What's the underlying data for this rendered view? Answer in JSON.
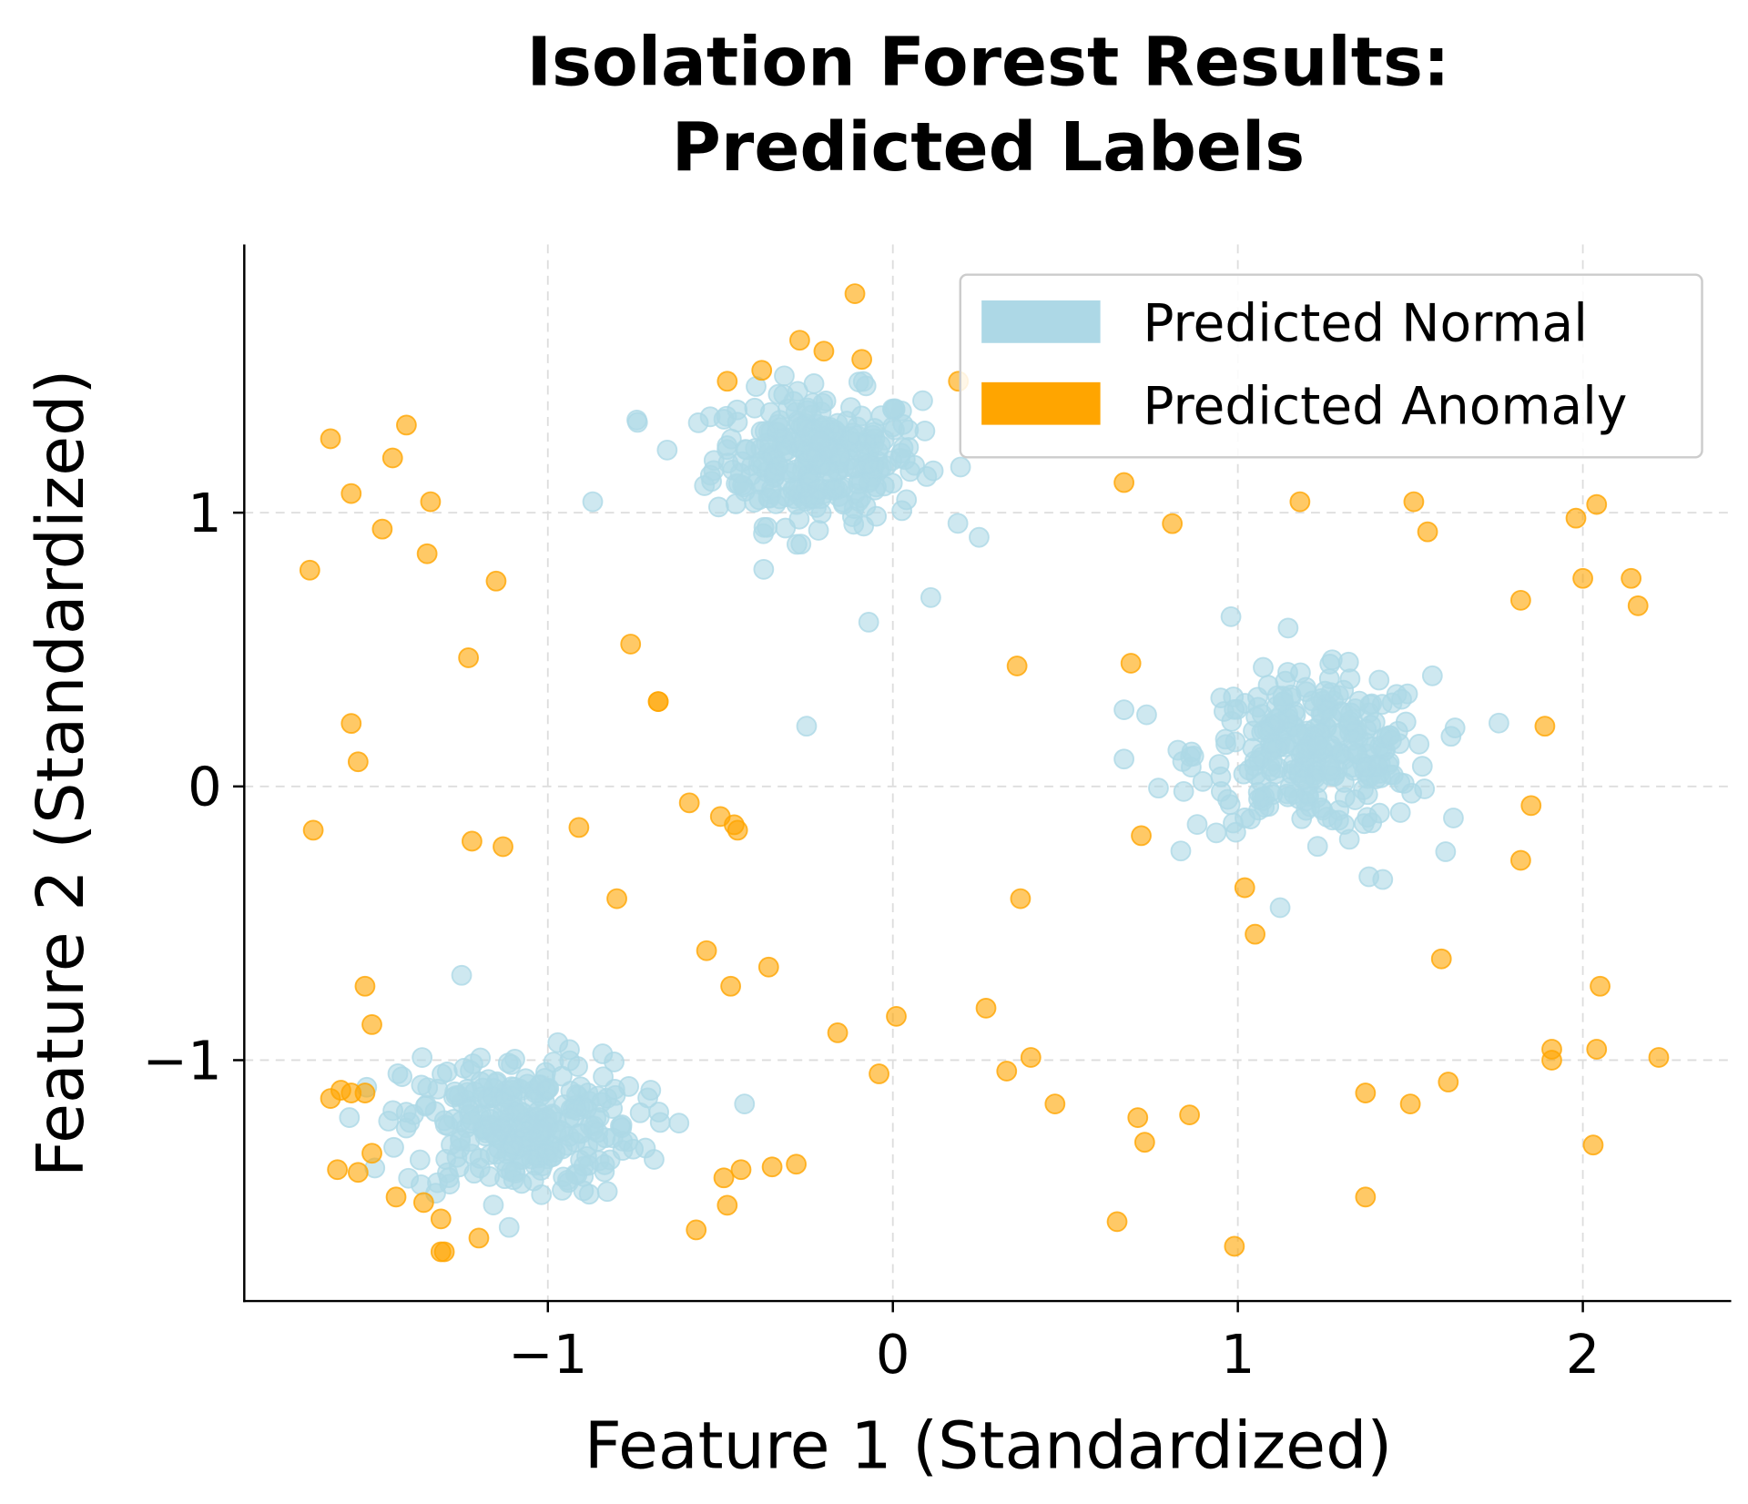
{
  "chart_data": {
    "type": "scatter",
    "title": "Isolation Forest Results:\nPredicted Labels",
    "title_lines": [
      "Isolation Forest Results:",
      "Predicted Labels"
    ],
    "xlabel": "Feature 1 (Standardized)",
    "ylabel": "Feature 2 (Standardized)",
    "xlim": [
      -1.88,
      2.43
    ],
    "ylim": [
      -1.88,
      1.98
    ],
    "xticks": [
      -1,
      0,
      1,
      2
    ],
    "yticks": [
      -1,
      0,
      1
    ],
    "xtick_labels": [
      "−1",
      "0",
      "1",
      "2"
    ],
    "ytick_labels": [
      "−1",
      "0",
      "1"
    ],
    "grid": true,
    "legend_position": "top-right",
    "series": [
      {
        "name": "Predicted Normal",
        "color": "#add8e6",
        "clusters": [
          {
            "center": [
              -0.22,
              1.2
            ],
            "std": [
              0.15,
              0.12
            ],
            "count": 300
          },
          {
            "center": [
              1.22,
              0.12
            ],
            "std": [
              0.17,
              0.14
            ],
            "count": 300
          },
          {
            "center": [
              -1.08,
              -1.24
            ],
            "std": [
              0.17,
              0.13
            ],
            "count": 300
          }
        ],
        "points": [
          [
            -0.25,
            0.22
          ],
          [
            -0.07,
            0.6
          ],
          [
            0.11,
            0.69
          ],
          [
            -0.87,
            1.04
          ],
          [
            0.67,
            0.28
          ],
          [
            0.67,
            0.1
          ],
          [
            0.98,
            0.62
          ],
          [
            -0.74,
            1.33
          ],
          [
            0.25,
            0.91
          ],
          [
            1.38,
            -0.33
          ],
          [
            1.42,
            -0.34
          ],
          [
            -1.25,
            -0.69
          ],
          [
            -0.43,
            -1.16
          ],
          [
            -0.62,
            -1.23
          ]
        ]
      },
      {
        "name": "Predicted Anomaly",
        "color": "#ffa500",
        "points": [
          [
            -0.11,
            1.8
          ],
          [
            -0.27,
            1.63
          ],
          [
            -0.2,
            1.59
          ],
          [
            -0.09,
            1.56
          ],
          [
            -0.38,
            1.52
          ],
          [
            -0.48,
            1.48
          ],
          [
            0.19,
            1.48
          ],
          [
            -1.63,
            1.27
          ],
          [
            -1.41,
            1.32
          ],
          [
            -1.45,
            1.2
          ],
          [
            -1.57,
            1.07
          ],
          [
            -1.34,
            1.04
          ],
          [
            -1.48,
            0.94
          ],
          [
            -1.35,
            0.85
          ],
          [
            -1.69,
            0.79
          ],
          [
            -1.15,
            0.75
          ],
          [
            0.67,
            1.11
          ],
          [
            0.81,
            0.96
          ],
          [
            1.18,
            1.04
          ],
          [
            1.51,
            1.04
          ],
          [
            1.55,
            0.93
          ],
          [
            1.98,
            0.98
          ],
          [
            2.04,
            1.03
          ],
          [
            2.0,
            0.76
          ],
          [
            2.14,
            0.76
          ],
          [
            2.16,
            0.66
          ],
          [
            1.82,
            0.68
          ],
          [
            -1.23,
            0.47
          ],
          [
            -0.76,
            0.52
          ],
          [
            -0.68,
            0.31
          ],
          [
            -0.68,
            0.31
          ],
          [
            0.36,
            0.44
          ],
          [
            0.69,
            0.45
          ],
          [
            -1.57,
            0.23
          ],
          [
            -1.55,
            0.09
          ],
          [
            1.89,
            0.22
          ],
          [
            -1.68,
            -0.16
          ],
          [
            -0.59,
            -0.06
          ],
          [
            -0.5,
            -0.11
          ],
          [
            -0.46,
            -0.14
          ],
          [
            -0.45,
            -0.16
          ],
          [
            -1.22,
            -0.2
          ],
          [
            -1.13,
            -0.22
          ],
          [
            -0.91,
            -0.15
          ],
          [
            0.72,
            -0.18
          ],
          [
            1.85,
            -0.07
          ],
          [
            1.82,
            -0.27
          ],
          [
            -0.8,
            -0.41
          ],
          [
            0.37,
            -0.41
          ],
          [
            1.02,
            -0.37
          ],
          [
            1.05,
            -0.54
          ],
          [
            -0.54,
            -0.6
          ],
          [
            -0.36,
            -0.66
          ],
          [
            -0.47,
            -0.73
          ],
          [
            -1.53,
            -0.73
          ],
          [
            -1.51,
            -0.87
          ],
          [
            1.59,
            -0.63
          ],
          [
            2.05,
            -0.73
          ],
          [
            -0.16,
            -0.9
          ],
          [
            0.01,
            -0.84
          ],
          [
            0.27,
            -0.81
          ],
          [
            0.4,
            -0.99
          ],
          [
            0.33,
            -1.04
          ],
          [
            -0.04,
            -1.05
          ],
          [
            0.47,
            -1.16
          ],
          [
            1.91,
            -0.96
          ],
          [
            1.91,
            -1.0
          ],
          [
            2.04,
            -0.96
          ],
          [
            2.22,
            -0.99
          ],
          [
            1.37,
            -1.12
          ],
          [
            1.61,
            -1.08
          ],
          [
            1.5,
            -1.16
          ],
          [
            0.71,
            -1.21
          ],
          [
            0.86,
            -1.2
          ],
          [
            0.73,
            -1.3
          ],
          [
            2.03,
            -1.31
          ],
          [
            -1.63,
            -1.14
          ],
          [
            -1.6,
            -1.11
          ],
          [
            -1.57,
            -1.12
          ],
          [
            -1.53,
            -1.12
          ],
          [
            -1.61,
            -1.4
          ],
          [
            -1.55,
            -1.41
          ],
          [
            -1.51,
            -1.34
          ],
          [
            -1.44,
            -1.5
          ],
          [
            -1.36,
            -1.52
          ],
          [
            -1.31,
            -1.58
          ],
          [
            -1.31,
            -1.7
          ],
          [
            -1.3,
            -1.7
          ],
          [
            -1.2,
            -1.65
          ],
          [
            -0.57,
            -1.62
          ],
          [
            -0.49,
            -1.43
          ],
          [
            -0.44,
            -1.4
          ],
          [
            -0.35,
            -1.39
          ],
          [
            -0.28,
            -1.38
          ],
          [
            -0.48,
            -1.53
          ],
          [
            0.65,
            -1.59
          ],
          [
            0.99,
            -1.68
          ],
          [
            1.37,
            -1.5
          ]
        ]
      }
    ]
  }
}
